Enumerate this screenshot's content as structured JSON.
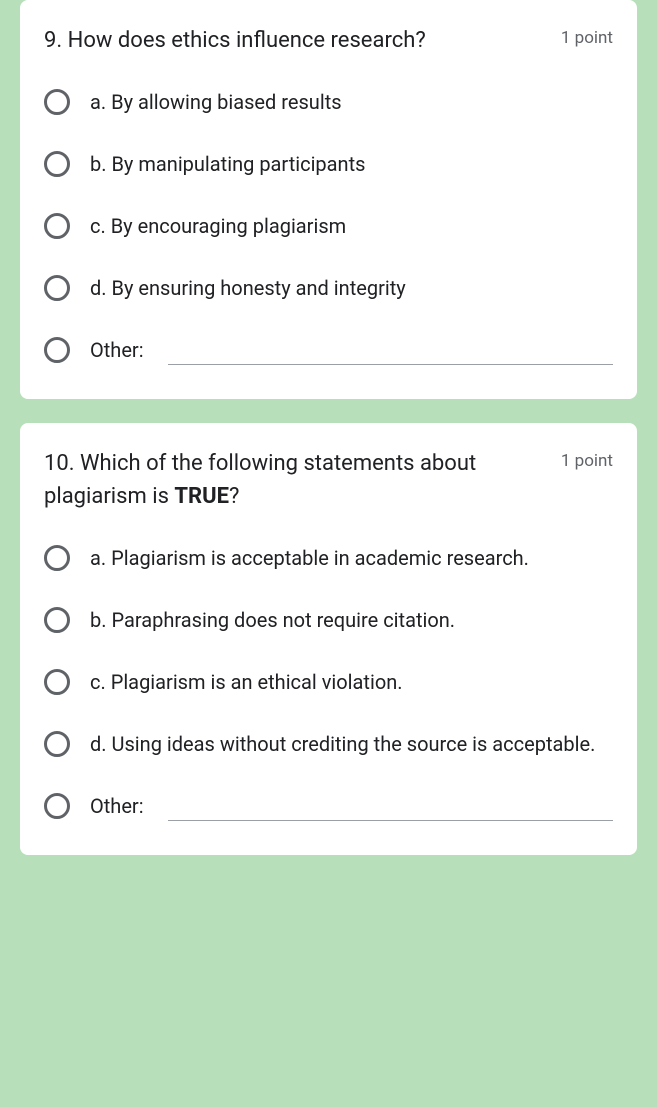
{
  "questions": [
    {
      "number": "9.",
      "title_plain": "How does ethics influence research?",
      "title_bold": "",
      "title_tail": "",
      "points": "1 point",
      "options": [
        "a. By allowing biased results",
        "b. By manipulating participants",
        "c. By encouraging plagiarism",
        "d. By ensuring honesty and integrity"
      ],
      "other_label": "Other:"
    },
    {
      "number": "10.",
      "title_plain": "Which of the following statements about plagiarism is ",
      "title_bold": "TRUE",
      "title_tail": "?",
      "points": "1 point",
      "options": [
        "a. Plagiarism is acceptable in academic research.",
        "b. Paraphrasing does not require citation.",
        "c. Plagiarism is an ethical violation.",
        "d. Using ideas without crediting the source is acceptable."
      ],
      "other_label": "Other:"
    }
  ],
  "colors": {
    "page_bg": "#b7dfb9",
    "card_bg": "#ffffff",
    "text_primary": "#202124",
    "text_secondary": "#5f6368",
    "radio_border": "#5f6368",
    "input_underline": "#9aa0a6"
  }
}
